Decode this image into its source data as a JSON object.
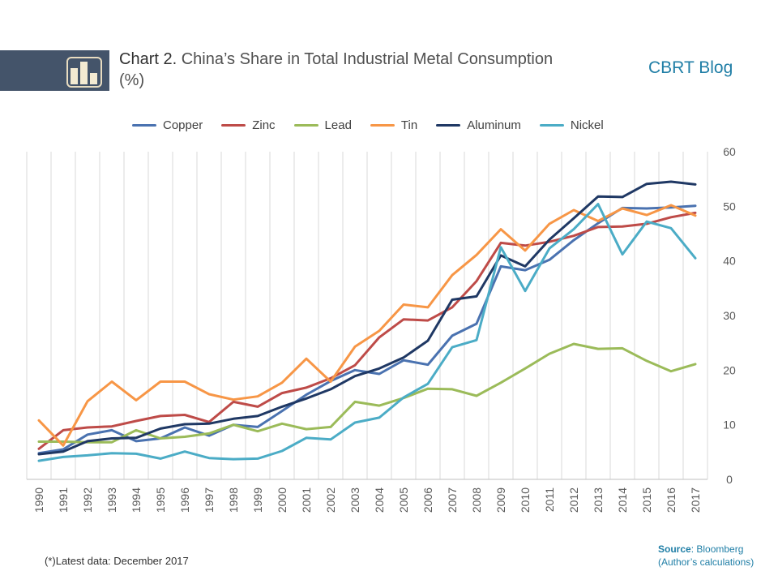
{
  "header": {
    "chart_label": "Chart  2.",
    "title": "China’s Share in Total Industrial Metal Consumption (%)",
    "brand": "CBRT Blog",
    "icon": "bar-chart-icon"
  },
  "footer": {
    "footnote": "(*)Latest data: December 2017",
    "source_label": "Source",
    "source_value": ": Bloomberg",
    "source_note": "(Author’s calculations)"
  },
  "chart_data": {
    "type": "line",
    "title": "China’s Share in Total Industrial Metal Consumption (%)",
    "xlabel": "",
    "ylabel": "",
    "x": [
      "1990",
      "1991",
      "1992",
      "1993",
      "1994",
      "1995",
      "1996",
      "1997",
      "1998",
      "1999",
      "2000",
      "2001",
      "2002",
      "2003",
      "2004",
      "2005",
      "2006",
      "2007",
      "2008",
      "2009",
      "2010",
      "2011",
      "2012",
      "2013",
      "2014",
      "2015",
      "2016",
      "2017"
    ],
    "ylim": [
      0,
      60
    ],
    "yticks": [
      0,
      10,
      20,
      30,
      40,
      50,
      60
    ],
    "yaxis_position": "right",
    "grid": "vertical",
    "legend": "top",
    "series": [
      {
        "name": "Copper",
        "color": "#4a72b0",
        "values": [
          4.8,
          5.5,
          8.2,
          9.0,
          7.0,
          7.5,
          9.5,
          8.0,
          10.0,
          9.6,
          12.5,
          15.5,
          18.0,
          20.0,
          19.3,
          21.8,
          21.0,
          26.3,
          28.5,
          39.0,
          38.3,
          40.2,
          43.8,
          46.9,
          49.7,
          49.6,
          49.8,
          50.1
        ]
      },
      {
        "name": "Zinc",
        "color": "#be4b48",
        "values": [
          5.6,
          9.0,
          9.5,
          9.7,
          10.7,
          11.6,
          11.8,
          10.5,
          14.2,
          13.3,
          15.8,
          16.8,
          18.5,
          20.9,
          26.0,
          29.3,
          29.1,
          31.5,
          36.3,
          43.3,
          42.8,
          43.5,
          44.6,
          46.2,
          46.3,
          46.8,
          48.0,
          48.8
        ]
      },
      {
        "name": "Lead",
        "color": "#9bbb59",
        "values": [
          6.9,
          6.9,
          6.8,
          6.8,
          9.0,
          7.5,
          7.8,
          8.4,
          10.0,
          8.8,
          10.2,
          9.2,
          9.6,
          14.2,
          13.5,
          14.9,
          16.6,
          16.5,
          15.3,
          17.7,
          20.3,
          23.0,
          24.8,
          23.9,
          24.0,
          21.7,
          19.8,
          21.1
        ]
      },
      {
        "name": "Tin",
        "color": "#f79646",
        "values": [
          10.8,
          6.2,
          14.3,
          17.9,
          14.5,
          17.9,
          17.9,
          15.6,
          14.6,
          15.2,
          17.7,
          22.1,
          17.9,
          24.3,
          27.2,
          32.0,
          31.5,
          37.4,
          41.1,
          45.8,
          41.9,
          46.8,
          49.3,
          47.3,
          49.6,
          48.4,
          50.2,
          48.3
        ]
      },
      {
        "name": "Aluminum",
        "color": "#1f3864",
        "values": [
          4.6,
          5.1,
          7.0,
          7.5,
          7.6,
          9.3,
          10.1,
          10.2,
          11.1,
          11.6,
          13.3,
          14.8,
          16.5,
          18.9,
          20.3,
          22.3,
          25.4,
          32.9,
          33.5,
          41.0,
          39.0,
          43.9,
          47.8,
          51.8,
          51.7,
          54.1,
          54.5,
          54.0
        ]
      },
      {
        "name": "Nickel",
        "color": "#4bacc6",
        "values": [
          3.4,
          4.1,
          4.4,
          4.8,
          4.7,
          3.8,
          5.1,
          3.9,
          3.7,
          3.8,
          5.2,
          7.6,
          7.3,
          10.4,
          11.3,
          15.0,
          17.5,
          24.2,
          25.5,
          42.5,
          34.5,
          42.3,
          45.8,
          50.4,
          41.2,
          47.2,
          46.0,
          40.5
        ]
      }
    ]
  }
}
